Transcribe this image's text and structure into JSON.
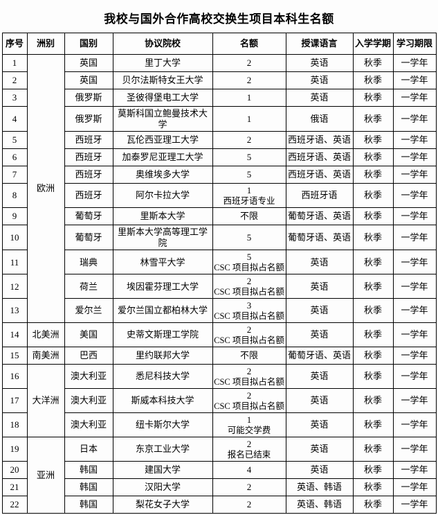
{
  "title": "我校与国外合作高校交换生项目本科生名额",
  "table": {
    "headers": [
      "序号",
      "洲别",
      "国别",
      "协议院校",
      "名额",
      "授课语言",
      "入学学期",
      "学习期限"
    ],
    "continents": [
      {
        "label": "欧洲",
        "rowspan": 13
      },
      {
        "label": "北美洲",
        "rowspan": 1
      },
      {
        "label": "南美洲",
        "rowspan": 1
      },
      {
        "label": "大洋洲",
        "rowspan": 3
      },
      {
        "label": "亚洲",
        "rowspan": 4
      }
    ],
    "rows": [
      {
        "no": "1",
        "country": "英国",
        "university": "里丁大学",
        "quota": "2",
        "quota_note": "",
        "language": "英语",
        "semester": "秋季",
        "duration": "一学年"
      },
      {
        "no": "2",
        "country": "英国",
        "university": "贝尔法斯特女王大学",
        "quota": "2",
        "quota_note": "",
        "language": "英语",
        "semester": "秋季",
        "duration": "一学年"
      },
      {
        "no": "3",
        "country": "俄罗斯",
        "university": "圣彼得堡电工大学",
        "quota": "1",
        "quota_note": "",
        "language": "英语",
        "semester": "秋季",
        "duration": "一学年"
      },
      {
        "no": "4",
        "country": "俄罗斯",
        "university": "莫斯科国立鲍曼技术大学",
        "quota": "1",
        "quota_note": "",
        "language": "俄语",
        "semester": "秋季",
        "duration": "一学年"
      },
      {
        "no": "5",
        "country": "西班牙",
        "university": "瓦伦西亚理工大学",
        "quota": "2",
        "quota_note": "",
        "language": "西班牙语、英语",
        "semester": "秋季",
        "duration": "一学年"
      },
      {
        "no": "6",
        "country": "西班牙",
        "university": "加泰罗尼亚理工大学",
        "quota": "5",
        "quota_note": "",
        "language": "西班牙语、英语",
        "semester": "秋季",
        "duration": "一学年"
      },
      {
        "no": "7",
        "country": "西班牙",
        "university": "奥维埃多大学",
        "quota": "5",
        "quota_note": "",
        "language": "西班牙语、英语",
        "semester": "秋季",
        "duration": "一学年"
      },
      {
        "no": "8",
        "country": "西班牙",
        "university": "阿尔卡拉大学",
        "quota": "1",
        "quota_note": "西班牙语专业",
        "language": "西班牙语",
        "semester": "秋季",
        "duration": "一学年"
      },
      {
        "no": "9",
        "country": "葡萄牙",
        "university": "里斯本大学",
        "quota": "不限",
        "quota_note": "",
        "language": "葡萄牙语、英语",
        "semester": "秋季",
        "duration": "一学年"
      },
      {
        "no": "10",
        "country": "葡萄牙",
        "university": "里斯本大学高等理工学院",
        "quota": "5",
        "quota_note": "",
        "language": "葡萄牙语、英语",
        "semester": "秋季",
        "duration": "一学年"
      },
      {
        "no": "11",
        "country": "瑞典",
        "university": "林雪平大学",
        "quota": "5",
        "quota_note": "CSC 项目拟占名额",
        "language": "英语",
        "semester": "秋季",
        "duration": "一学年"
      },
      {
        "no": "12",
        "country": "荷兰",
        "university": "埃因霍芬理工大学",
        "quota": "2",
        "quota_note": "CSC 项目拟占名额",
        "language": "英语",
        "semester": "秋季",
        "duration": "一学年"
      },
      {
        "no": "13",
        "country": "爱尔兰",
        "university": "爱尔兰国立都柏林大学",
        "quota": "3",
        "quota_note": "CSC 项目拟占名额",
        "language": "英语",
        "semester": "秋季",
        "duration": "一学年"
      },
      {
        "no": "14",
        "country": "美国",
        "university": "史蒂文斯理工学院",
        "quota": "2",
        "quota_note": "CSC 项目拟占名额",
        "language": "英语",
        "semester": "秋季",
        "duration": "一学年"
      },
      {
        "no": "15",
        "country": "巴西",
        "university": "里约联邦大学",
        "quota": "不限",
        "quota_note": "",
        "language": "葡萄牙语、英语",
        "semester": "秋季",
        "duration": "一学年"
      },
      {
        "no": "16",
        "country": "澳大利亚",
        "university": "悉尼科技大学",
        "quota": "2",
        "quota_note": "CSC 项目拟占名额",
        "language": "英语",
        "semester": "秋季",
        "duration": "一学年"
      },
      {
        "no": "17",
        "country": "澳大利亚",
        "university": "斯威本科技大学",
        "quota": "2",
        "quota_note": "CSC 项目拟占名额",
        "language": "英语",
        "semester": "秋季",
        "duration": "一学年"
      },
      {
        "no": "18",
        "country": "澳大利亚",
        "university": "纽卡斯尔大学",
        "quota": "1",
        "quota_note": "可能交学费",
        "language": "英语",
        "semester": "秋季",
        "duration": "一学年"
      },
      {
        "no": "19",
        "country": "日本",
        "university": "东京工业大学",
        "quota": "2",
        "quota_note": "报名已结束",
        "language": "英语",
        "semester": "秋季",
        "duration": "一学年"
      },
      {
        "no": "20",
        "country": "韩国",
        "university": "建国大学",
        "quota": "4",
        "quota_note": "",
        "language": "英语",
        "semester": "秋季",
        "duration": "一学年"
      },
      {
        "no": "21",
        "country": "韩国",
        "university": "汉阳大学",
        "quota": "2",
        "quota_note": "",
        "language": "英语、韩语",
        "semester": "秋季",
        "duration": "一学年"
      },
      {
        "no": "22",
        "country": "韩国",
        "university": "梨花女子大学",
        "quota": "2",
        "quota_note": "",
        "language": "英语、韩语",
        "semester": "秋季",
        "duration": "一学年"
      }
    ]
  }
}
